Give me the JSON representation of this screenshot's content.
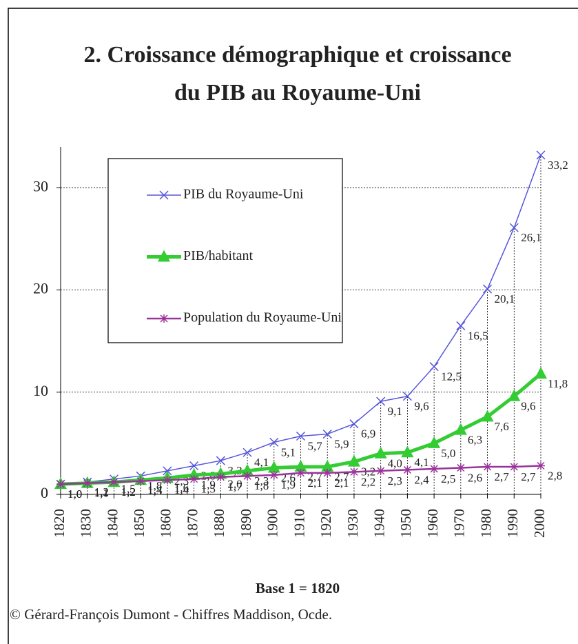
{
  "chart_data": {
    "type": "line",
    "title": "2. Croissance démographique et croissance",
    "subtitle": "du PIB au Royaume-Uni",
    "x_label": "Base 1 = 1820",
    "source": "© Gérard-François Dumont - Chiffres Maddison, Ocde.",
    "x": [
      1820,
      1830,
      1840,
      1850,
      1860,
      1870,
      1880,
      1890,
      1900,
      1910,
      1920,
      1930,
      1940,
      1950,
      1960,
      1970,
      1980,
      1990,
      2000
    ],
    "xlim": [
      1820,
      2000
    ],
    "xticks": [
      1820,
      1830,
      1840,
      1850,
      1860,
      1870,
      1880,
      1890,
      1900,
      1910,
      1920,
      1930,
      1940,
      1950,
      1960,
      1970,
      1980,
      1990,
      2000
    ],
    "ylim": [
      0,
      34
    ],
    "yticks": [
      0,
      10,
      20,
      30
    ],
    "grid": true,
    "legend": "upper left",
    "series": [
      {
        "name": "PIB du Royaume-Uni",
        "color": "#5555dd",
        "marker": "x",
        "values": [
          1.0,
          1.2,
          1.5,
          1.8,
          2.3,
          2.8,
          3.3,
          4.1,
          5.1,
          5.7,
          5.9,
          6.9,
          9.1,
          9.6,
          12.5,
          16.5,
          20.1,
          26.1,
          33.2
        ],
        "value_labels": [
          "1,0",
          "1,2",
          "1,5",
          "1,8",
          "2,3",
          "2,8",
          "3,3",
          "4,1",
          "5,1",
          "5,7",
          "5,9",
          "6,9",
          "9,1",
          "9,6",
          "12,5",
          "16,5",
          "20,1",
          "26,1",
          "33,2"
        ]
      },
      {
        "name": "PIB/habitant",
        "color": "#33cc33",
        "marker": "triangle",
        "values": [
          1.0,
          1.1,
          1.2,
          1.4,
          1.6,
          1.9,
          2.0,
          2.3,
          2.6,
          2.7,
          2.7,
          3.2,
          4.0,
          4.1,
          5.0,
          6.3,
          7.6,
          9.6,
          11.8
        ],
        "value_labels": [
          "1,0",
          "1,1",
          "1,2",
          "1,4",
          "1,6",
          "1,9",
          "2,0",
          "2,3",
          "2,6",
          "2,7",
          "2,7",
          "3,2",
          "4,0",
          "4,1",
          "5,0",
          "6,3",
          "7,6",
          "9,6",
          "11,8"
        ]
      },
      {
        "name": "Population du Royaume-Uni",
        "color": "#993399",
        "marker": "asterisk",
        "values": [
          1.0,
          1.1,
          1.2,
          1.3,
          1.4,
          1.5,
          1.7,
          1.8,
          1.9,
          2.1,
          2.1,
          2.2,
          2.3,
          2.4,
          2.5,
          2.6,
          2.7,
          2.7,
          2.8
        ],
        "value_labels": [
          "1,0",
          "1,1",
          "1,2",
          "1,3",
          "1,4",
          "1,5",
          "1,7",
          "1,8",
          "1,9",
          "2,1",
          "2,1",
          "2,2",
          "2,3",
          "2,4",
          "2,5",
          "2,6",
          "2,7",
          "2,7",
          "2,8"
        ]
      }
    ]
  }
}
